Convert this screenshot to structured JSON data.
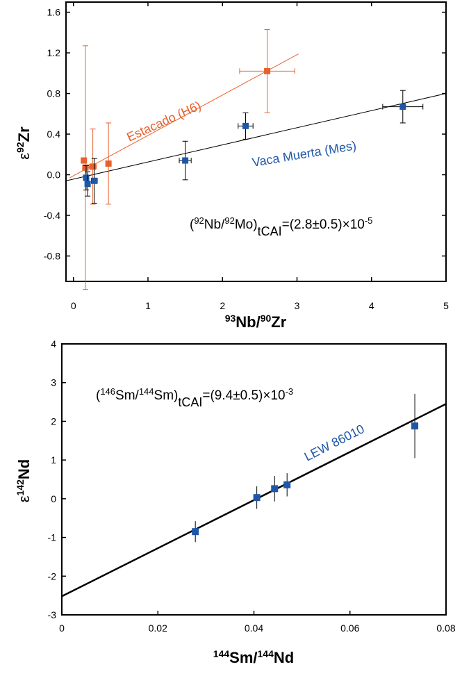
{
  "chart_data": [
    {
      "type": "scatter",
      "xlim": [
        -0.1,
        5
      ],
      "ylim": [
        -1.05,
        1.7
      ],
      "xticks": [
        "0",
        "1",
        "2",
        "3",
        "4",
        "5"
      ],
      "yticks": [
        "1.6",
        "1.2",
        "0.8",
        "0.4",
        "0.0",
        "-0.4",
        "-0.8"
      ],
      "xlabel": {
        "sup1": "93",
        "base1": "Nb/",
        "sup2": "90",
        "base2": "Zr"
      },
      "ylabel": {
        "eps": "ε",
        "sup": "92",
        "base": "Zr"
      },
      "annotation": {
        "pre": "(",
        "sup1": "92",
        "mid1": "Nb/",
        "sup2": "92",
        "mid2": "Mo)",
        "sub": "tCAI",
        "post": "=(2.8±0.5)×10",
        "exp": "-5"
      },
      "series": [
        {
          "name": "Estacado (H6)",
          "color": "#e8602c",
          "points": [
            {
              "x": 0.14,
              "y": 0.14,
              "xerr": 0.03,
              "yerr": 0.0
            },
            {
              "x": 0.16,
              "y": 0.07,
              "xerr": 0.03,
              "yerr": 1.2
            },
            {
              "x": 0.26,
              "y": 0.08,
              "xerr": 0.05,
              "yerr": 0.37
            },
            {
              "x": 0.47,
              "y": 0.11,
              "xerr": 0.0,
              "yerr": 0.4
            },
            {
              "x": 2.6,
              "y": 1.02,
              "xerr": 0.37,
              "yerr": 0.41
            }
          ],
          "fit": {
            "x": [
              -0.05,
              3.02
            ],
            "y": [
              -0.03,
              1.19
            ]
          }
        },
        {
          "name": "Vaca Muerta (Mes)",
          "color": "#1f57a8",
          "points": [
            {
              "x": 0.17,
              "y": -0.03,
              "xerr": 0.0,
              "yerr": 0.12
            },
            {
              "x": 0.19,
              "y": -0.09,
              "xerr": 0.02,
              "yerr": 0.12
            },
            {
              "x": 0.28,
              "y": -0.06,
              "xerr": 0.04,
              "yerr": 0.22
            },
            {
              "x": 1.5,
              "y": 0.14,
              "xerr": 0.08,
              "yerr": 0.19
            },
            {
              "x": 2.31,
              "y": 0.48,
              "xerr": 0.1,
              "yerr": 0.13
            },
            {
              "x": 4.42,
              "y": 0.67,
              "xerr": 0.27,
              "yerr": 0.16
            }
          ],
          "fit": {
            "x": [
              -0.1,
              5.0
            ],
            "y": [
              -0.06,
              0.8
            ]
          }
        }
      ]
    },
    {
      "type": "scatter",
      "xlim": [
        0,
        0.08
      ],
      "ylim": [
        -3,
        4
      ],
      "xticks": [
        "0",
        "0.02",
        "0.04",
        "0.06",
        "0.08"
      ],
      "yticks": [
        "4",
        "3",
        "2",
        "1",
        "0",
        "-1",
        "-2",
        "-3"
      ],
      "xlabel": {
        "sup1": "144",
        "base1": "Sm/",
        "sup2": "144",
        "base2": "Nd"
      },
      "ylabel": {
        "eps": "ε",
        "sup": "142",
        "base": "Nd"
      },
      "annotation": {
        "pre": "(",
        "sup1": "146",
        "mid1": "Sm/",
        "sup2": "144",
        "mid2": "Sm)",
        "sub": "tCAI",
        "post": "=(9.4±0.5)×10",
        "exp": "-3"
      },
      "series": [
        {
          "name": "LEW 86010",
          "color": "#1f57a8",
          "points": [
            {
              "x": 0.0278,
              "y": -0.85,
              "yerr": 0.27
            },
            {
              "x": 0.0406,
              "y": 0.03,
              "yerr": 0.29
            },
            {
              "x": 0.0443,
              "y": 0.26,
              "yerr": 0.33
            },
            {
              "x": 0.0469,
              "y": 0.36,
              "yerr": 0.3
            },
            {
              "x": 0.0735,
              "y": 1.88,
              "yerr": 0.83
            }
          ],
          "fit": {
            "x": [
              0,
              0.08
            ],
            "y": [
              -2.52,
              2.45
            ]
          }
        }
      ]
    }
  ]
}
